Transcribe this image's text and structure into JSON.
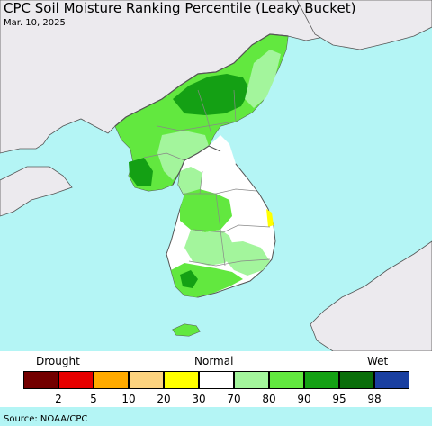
{
  "title": "CPC Soil Moisture Ranking Percentile (Leaky Bucket)",
  "date": "Mar. 10, 2025",
  "legend": {
    "left_label": "Drought",
    "center_label": "Normal",
    "right_label": "Wet",
    "classes": [
      {
        "color": "#730000",
        "tick": "2"
      },
      {
        "color": "#e60000",
        "tick": "5"
      },
      {
        "color": "#ffaa00",
        "tick": "10"
      },
      {
        "color": "#fcd37f",
        "tick": "20"
      },
      {
        "color": "#ffff00",
        "tick": "30"
      },
      {
        "color": "#ffffff",
        "tick": "70"
      },
      {
        "color": "#a3f59c",
        "tick": "80"
      },
      {
        "color": "#62e83f",
        "tick": "90"
      },
      {
        "color": "#14a014",
        "tick": "95"
      },
      {
        "color": "#0a6e0a",
        "tick": "98"
      },
      {
        "color": "#1a3fa0",
        "tick": ""
      }
    ]
  },
  "colors": {
    "ocean": "#b4f5f5",
    "foreign_land": "#eceaee",
    "korea_normal": "#ffffff",
    "light_green": "#a3f59c",
    "medium_green": "#62e83f",
    "dark_green": "#14a014",
    "yellow": "#ffff00",
    "coast_line": "#555555",
    "boundary_line": "#888888"
  },
  "source": "Source: NOAA/CPC"
}
